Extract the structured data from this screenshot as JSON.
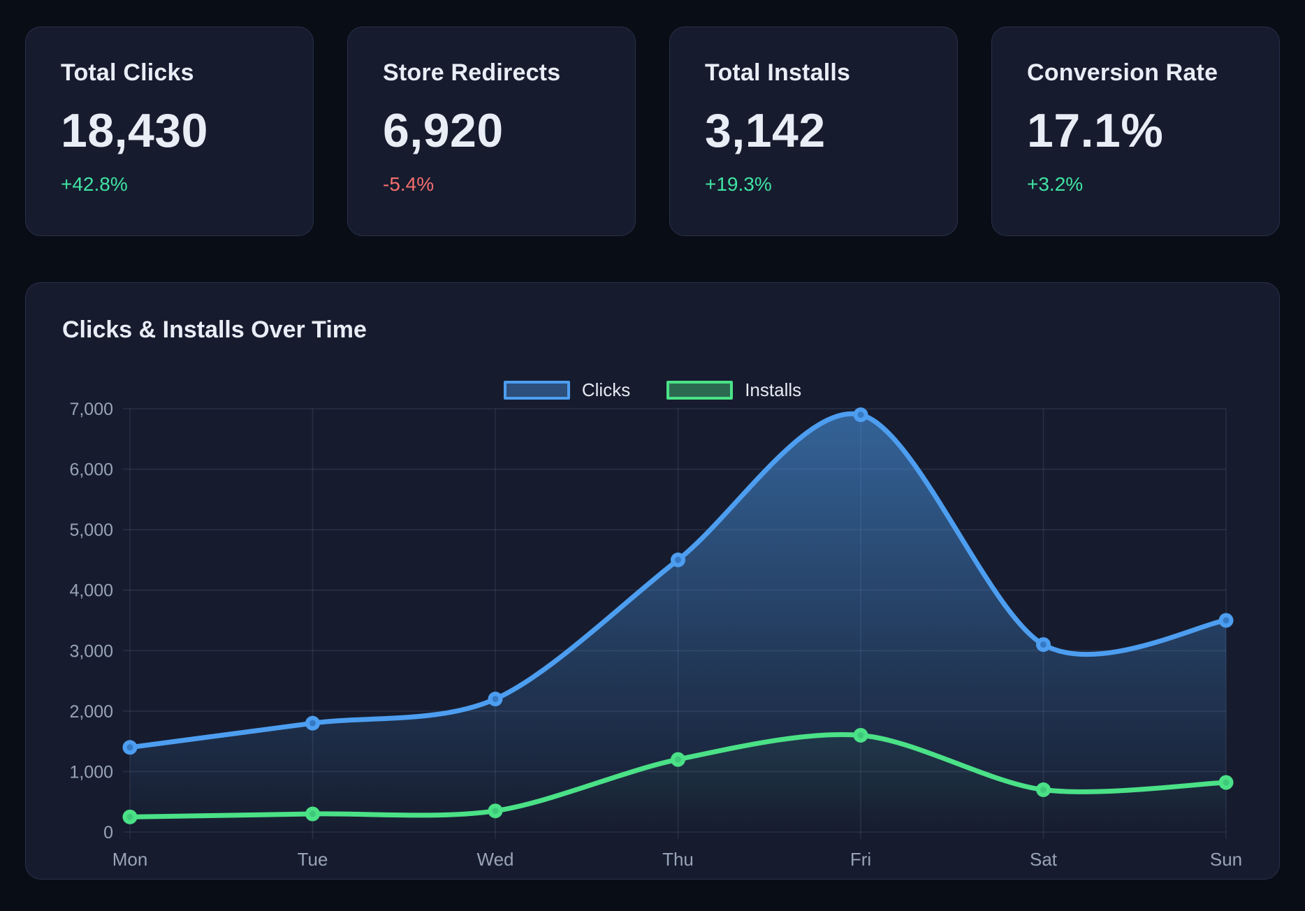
{
  "stats": [
    {
      "label": "Total Clicks",
      "value": "18,430",
      "delta": "+42.8%",
      "trend": "up"
    },
    {
      "label": "Store Redirects",
      "value": "6,920",
      "delta": "-5.4%",
      "trend": "down"
    },
    {
      "label": "Total Installs",
      "value": "3,142",
      "delta": "+19.3%",
      "trend": "up"
    },
    {
      "label": "Conversion Rate",
      "value": "17.1%",
      "delta": "+3.2%",
      "trend": "up"
    }
  ],
  "colors": {
    "positive": "#40e3a3",
    "negative": "#f56e6e",
    "clicks": "#4d9ef0",
    "clicks_point_inner": "#3579c4",
    "installs": "#4be187",
    "installs_point_inner": "#3ec97a",
    "axis_text": "#99a3b8",
    "grid": "rgba(160,175,210,0.13)",
    "card_bg": "#161c2e",
    "page_bg": "#090d16"
  },
  "chart_data": {
    "type": "line",
    "title": "Clicks & Installs Over Time",
    "categories": [
      "Mon",
      "Tue",
      "Wed",
      "Thu",
      "Fri",
      "Sat",
      "Sun"
    ],
    "series": [
      {
        "name": "Clicks",
        "color": "#4d9ef0",
        "values": [
          1400,
          1800,
          2200,
          4500,
          6900,
          3100,
          3500
        ]
      },
      {
        "name": "Installs",
        "color": "#4be187",
        "values": [
          250,
          300,
          350,
          1200,
          1600,
          700,
          820
        ]
      }
    ],
    "ylim": [
      0,
      7000
    ],
    "ytick_step": 1000,
    "grid": true,
    "legend_position": "top-center",
    "smooth": true,
    "area_fill": true
  }
}
